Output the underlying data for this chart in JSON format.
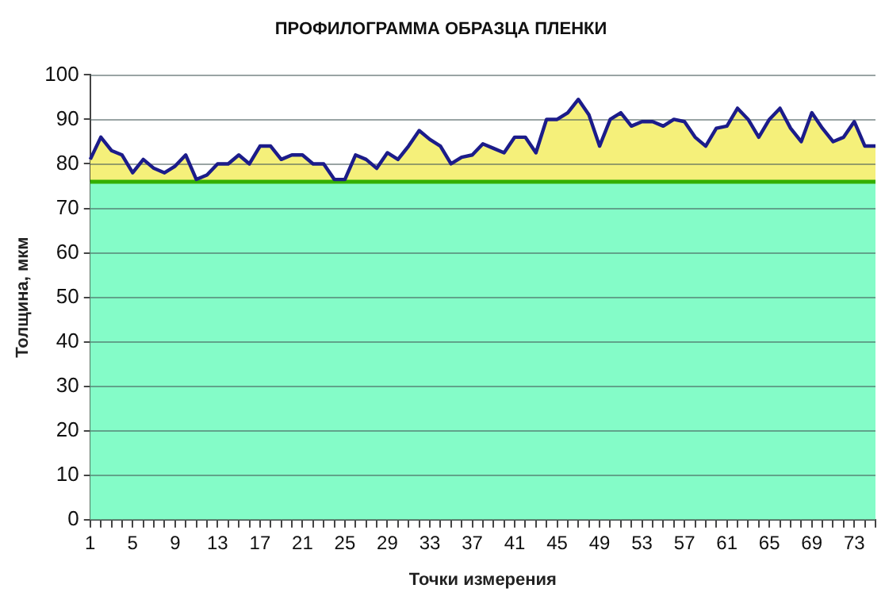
{
  "chart_data": {
    "type": "area",
    "title": "ПРОФИЛОГРАММА ОБРАЗЦА ПЛЕНКИ",
    "xlabel": "Точки измерения",
    "ylabel": "Толщина, мкм",
    "categories": [
      "1",
      null,
      null,
      null,
      "5",
      null,
      null,
      null,
      "9",
      null,
      null,
      null,
      "13",
      null,
      null,
      null,
      "17",
      null,
      null,
      null,
      "21",
      null,
      null,
      null,
      "25",
      null,
      null,
      null,
      "29",
      null,
      null,
      null,
      "33",
      null,
      null,
      null,
      "37",
      null,
      null,
      null,
      "41",
      null,
      null,
      null,
      "45",
      null,
      null,
      null,
      "49",
      null,
      null,
      null,
      "53",
      null,
      null,
      null,
      "57",
      null,
      null,
      null,
      "61",
      null,
      null,
      null,
      "65",
      null,
      null,
      null,
      "69",
      null,
      null,
      null,
      "73",
      null,
      null
    ],
    "series": [
      {
        "color": "#f5f07a",
        "values": [
          81,
          86,
          83,
          82,
          78,
          81,
          79,
          78,
          79.5,
          82,
          76.5,
          77.5,
          80,
          80,
          82,
          80,
          84,
          84,
          81,
          82,
          82,
          80,
          80,
          76.5,
          76.5,
          82,
          81,
          79,
          82.5,
          81,
          84,
          87.5,
          85.5,
          84,
          80,
          81.5,
          82,
          84.5,
          83.5,
          82.5,
          86,
          86,
          82.5,
          90,
          90,
          91.5,
          94.5,
          91,
          84,
          90,
          91.5,
          88.5,
          89.5,
          89.5,
          88.5,
          90,
          89.5,
          86,
          84,
          88,
          88.5,
          92.5,
          90,
          86,
          90,
          92.5,
          88,
          85,
          91.5,
          88,
          85,
          86,
          89.5,
          84,
          84
        ]
      },
      {
        "type": "line",
        "color": "#1c1c8a",
        "values": [
          81,
          86,
          83,
          82,
          78,
          81,
          79,
          78,
          79.5,
          82,
          76.5,
          77.5,
          80,
          80,
          82,
          80,
          84,
          84,
          81,
          82,
          82,
          80,
          80,
          76.5,
          76.5,
          82,
          81,
          79,
          82.5,
          81,
          84,
          87.5,
          85.5,
          84,
          80,
          81.5,
          82,
          84.5,
          83.5,
          82.5,
          86,
          86,
          82.5,
          90,
          90,
          91.5,
          94.5,
          91,
          84,
          90,
          91.5,
          88.5,
          89.5,
          89.5,
          88.5,
          90,
          89.5,
          86,
          84,
          88,
          88.5,
          92.5,
          90,
          86,
          90,
          92.5,
          88,
          85,
          91.5,
          88,
          85,
          86,
          89.5,
          84,
          84
        ]
      }
    ],
    "bands": [
      {
        "axis": "y",
        "from": 0,
        "to": 76,
        "color": "#84fcc8"
      }
    ],
    "ref_lines": [
      {
        "axis": "y",
        "value": 76,
        "color": "#33b000"
      }
    ],
    "ylim": [
      0,
      100
    ],
    "yticks": [
      0,
      10,
      20,
      30,
      40,
      50,
      60,
      70,
      80,
      90,
      100
    ],
    "grid": "y",
    "legend": false,
    "marker": "none",
    "line_style": "solid"
  }
}
